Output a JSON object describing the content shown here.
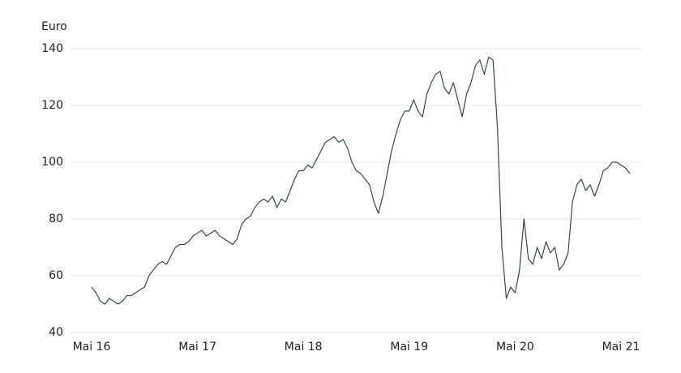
{
  "chart_data": {
    "type": "line",
    "y_label": "Euro",
    "categories": [
      "Mai 16",
      null,
      null,
      null,
      null,
      null,
      null,
      null,
      null,
      null,
      null,
      null,
      null,
      null,
      null,
      null,
      null,
      null,
      null,
      null,
      null,
      null,
      null,
      null,
      "Mai 17",
      null,
      null,
      null,
      null,
      null,
      null,
      null,
      null,
      null,
      null,
      null,
      null,
      null,
      null,
      null,
      null,
      null,
      null,
      null,
      null,
      null,
      null,
      null,
      "Mai 18",
      null,
      null,
      null,
      null,
      null,
      null,
      null,
      null,
      null,
      null,
      null,
      null,
      null,
      null,
      null,
      null,
      null,
      null,
      null,
      null,
      null,
      null,
      null,
      "Mai 19",
      null,
      null,
      null,
      null,
      null,
      null,
      null,
      null,
      null,
      null,
      null,
      null,
      null,
      null,
      null,
      null,
      null,
      null,
      null,
      null,
      null,
      null,
      null,
      "Mai 20",
      null,
      null,
      null,
      null,
      null,
      null,
      null,
      null,
      null,
      null,
      null,
      null,
      null,
      null,
      null,
      null,
      null,
      null,
      null,
      null,
      null,
      null,
      null,
      "Mai 21",
      null,
      null
    ],
    "values": [
      56,
      54,
      51,
      50,
      52,
      51,
      50,
      51,
      53,
      53,
      54,
      55,
      56,
      60,
      62,
      64,
      65,
      64,
      67,
      70,
      71,
      71,
      72,
      74,
      75,
      76,
      74,
      75,
      76,
      74,
      73,
      72,
      71,
      73,
      78,
      80,
      81,
      84,
      86,
      87,
      86,
      88,
      84,
      87,
      86,
      90,
      94,
      97,
      97,
      99,
      98,
      101,
      104,
      107,
      108,
      109,
      107,
      108,
      105,
      100,
      97,
      96,
      94,
      92,
      86,
      82,
      88,
      96,
      104,
      110,
      115,
      118,
      118,
      122,
      118,
      116,
      124,
      128,
      131,
      132,
      126,
      124,
      128,
      122,
      116,
      124,
      128,
      134,
      136,
      131,
      137,
      136,
      112,
      70,
      52,
      56,
      54,
      62,
      80,
      66,
      64,
      70,
      66,
      72,
      68,
      70,
      62,
      64,
      68,
      86,
      92,
      94,
      90,
      92,
      88,
      92,
      97,
      98,
      100,
      100,
      99,
      98,
      96
    ],
    "color": "#2f4a4f",
    "ylim": [
      40,
      140
    ],
    "yticks": [
      40,
      60,
      80,
      100,
      120,
      140
    ],
    "grid": true
  }
}
